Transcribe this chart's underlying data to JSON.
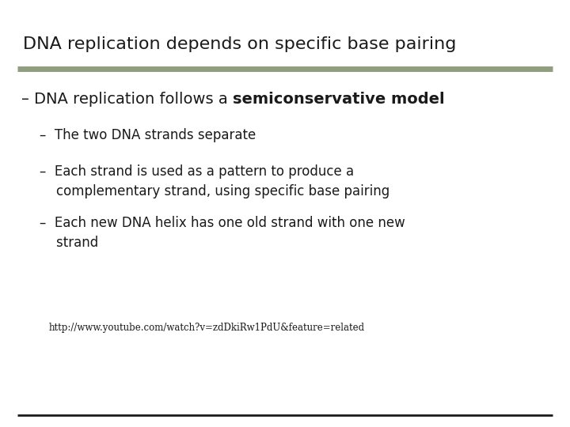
{
  "title": "DNA replication depends on specific base pairing",
  "title_fontsize": 16,
  "title_color": "#1a1a1a",
  "background_color": "#ffffff",
  "separator_color": "#8f9e7e",
  "bottom_line_color": "#1a1a1a",
  "level1_text_normal": "– DNA replication follows a ",
  "level1_text_bold": "semiconservative model",
  "level1_fontsize": 14,
  "level2_items": [
    "–  The two DNA strands separate",
    "–  Each strand is used as a pattern to produce a\n    complementary strand, using specific base pairing",
    "–  Each new DNA helix has one old strand with one new\n    strand"
  ],
  "level2_fontsize": 12,
  "url_text": "http://www.youtube.com/watch?v=zdDkiRw1PdU&feature=related",
  "url_fontsize": 8.5
}
